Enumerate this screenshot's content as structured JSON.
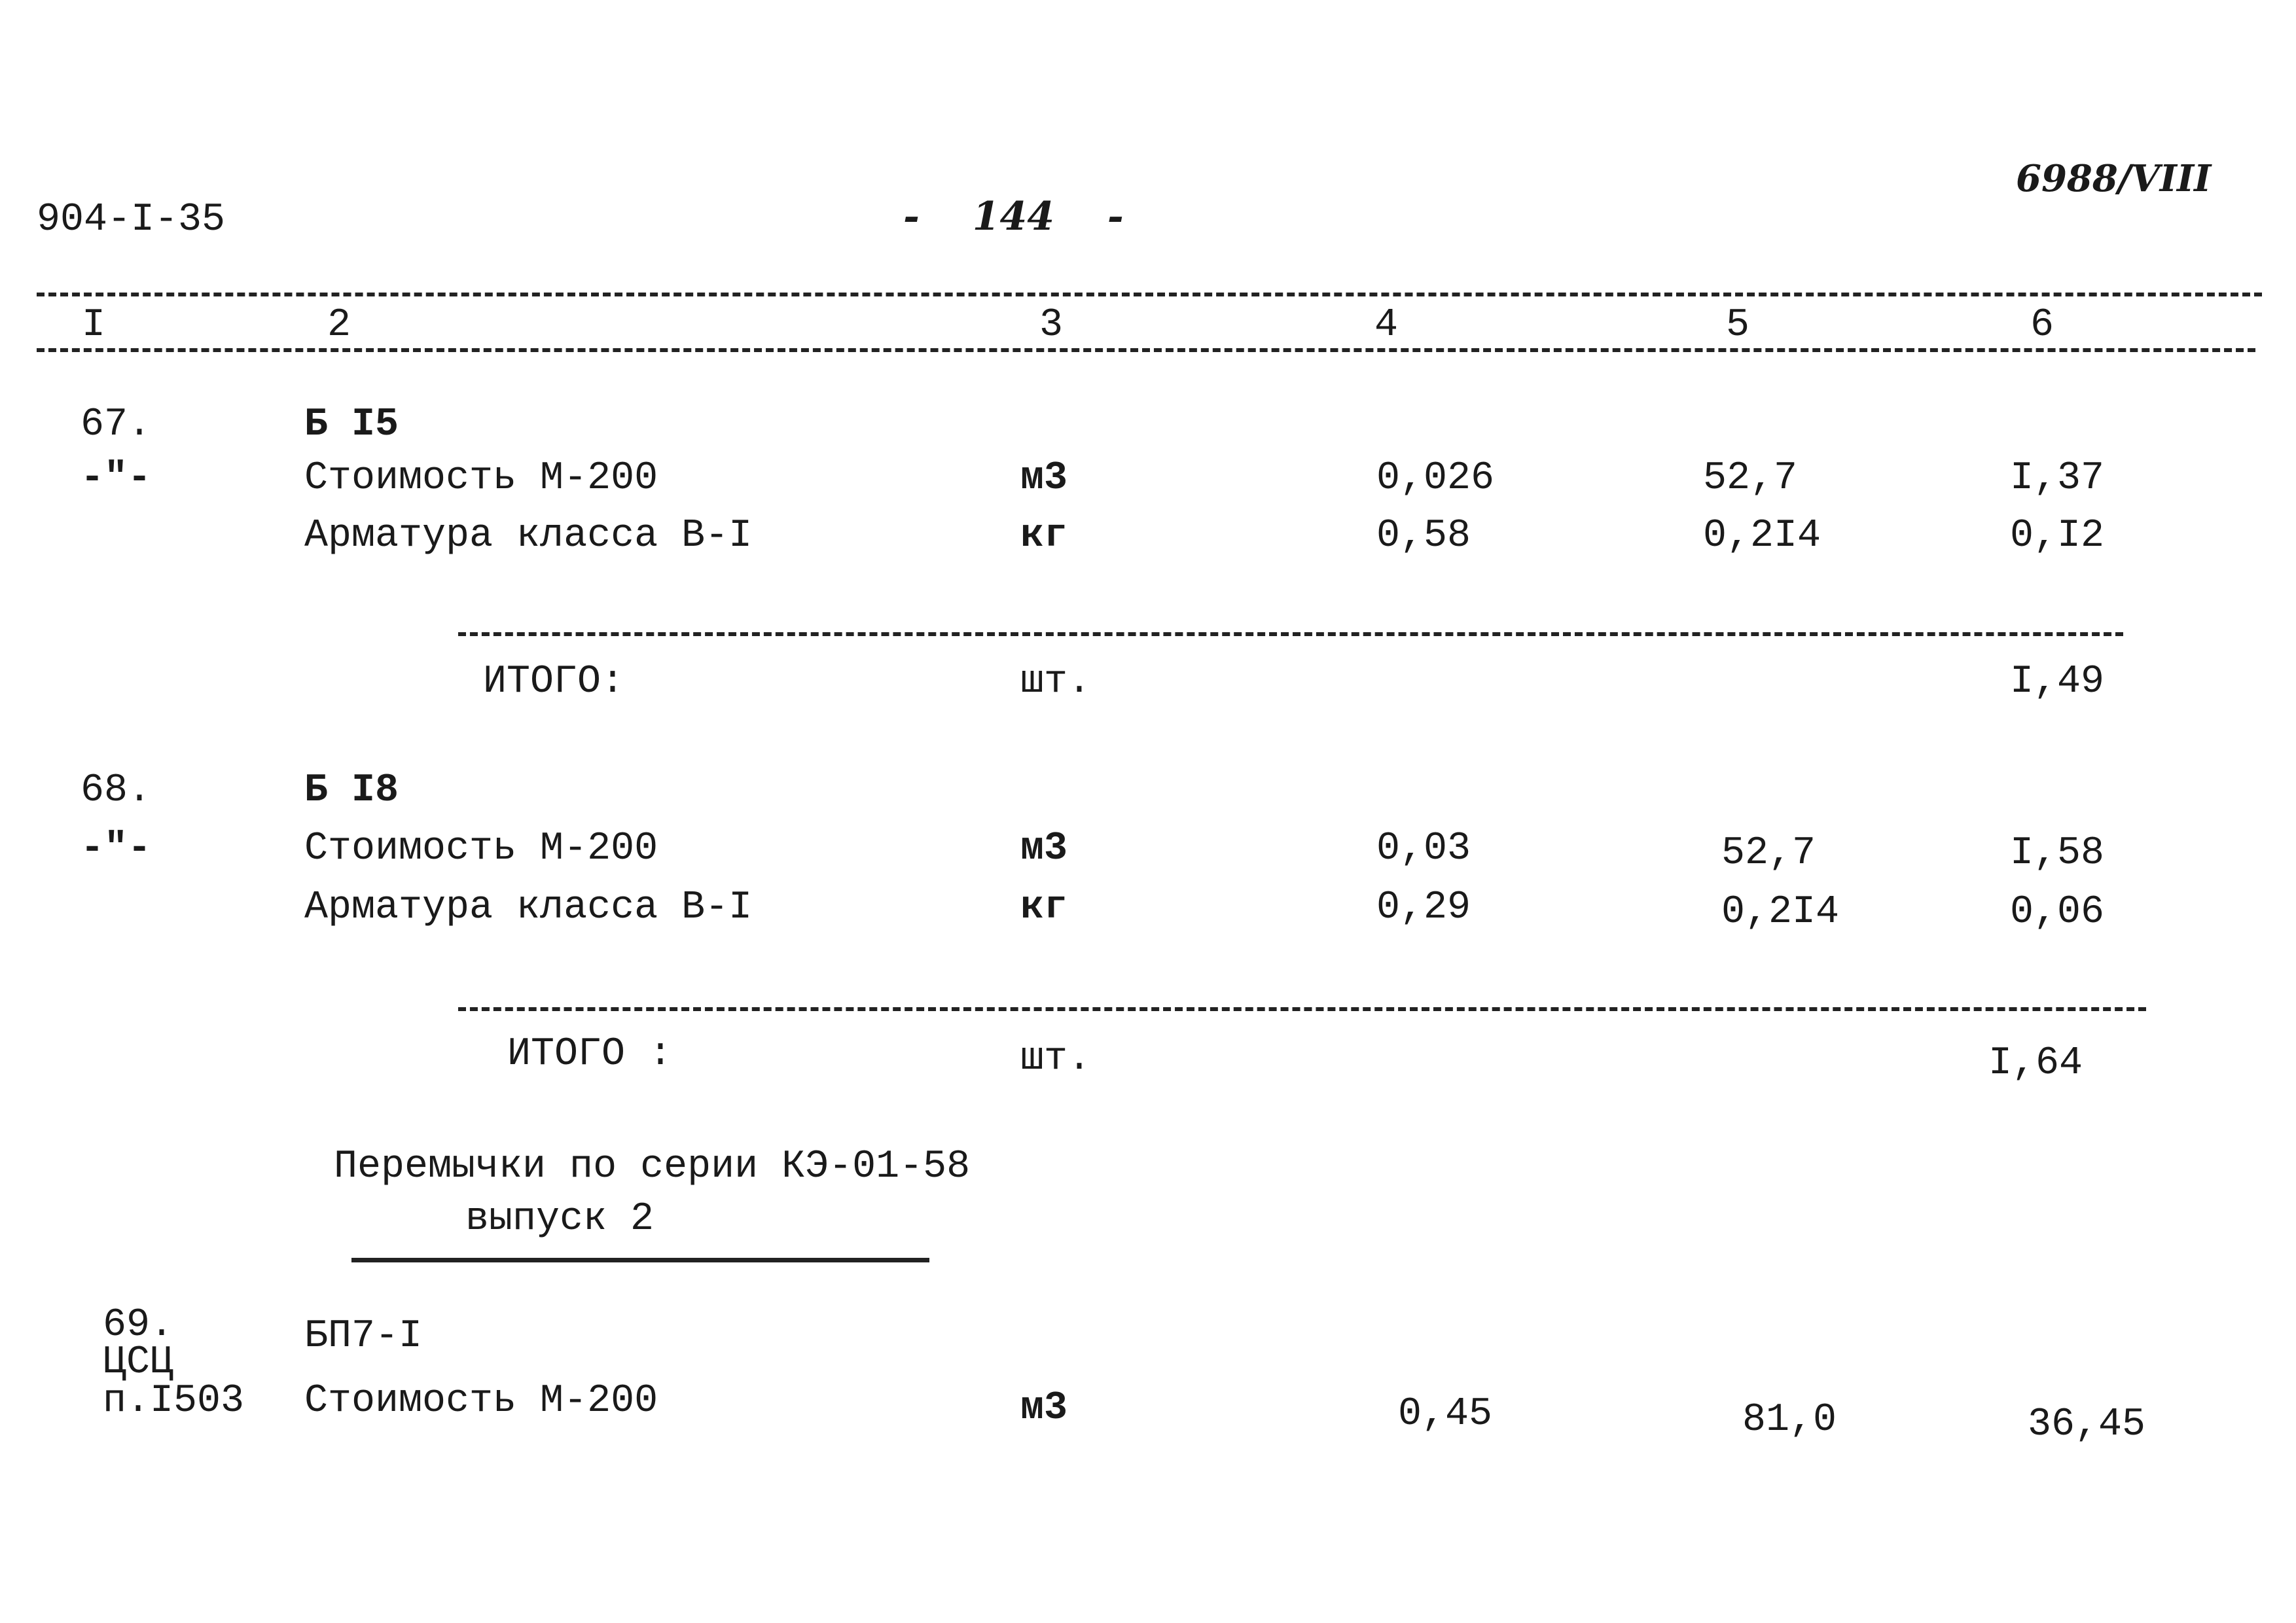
{
  "header": {
    "code": "904-I-35",
    "page": "- 144 -",
    "stamp": "6988/VIII"
  },
  "table": {
    "columns": [
      "I",
      "2",
      "3",
      "4",
      "5",
      "6"
    ],
    "groups": [
      {
        "number": "67.",
        "name": "Б I5",
        "rows": [
          {
            "ref": "-\"-",
            "name": "Стоимость М-200",
            "unit": "м3",
            "quantity": "0,026",
            "price": "52,7",
            "total": "I,37"
          },
          {
            "name": "Арматура класса В-I",
            "unit": "кг",
            "quantity": "0,58",
            "price": "0,2I4",
            "total": "0,I2"
          }
        ],
        "summary": {
          "label": "ИТОГО:",
          "unit": "шт.",
          "total": "I,49"
        }
      },
      {
        "number": "68.",
        "name": "Б I8",
        "rows": [
          {
            "ref": "-\"-",
            "name": "Стоимость М-200",
            "unit": "м3",
            "quantity": "0,03",
            "price": "52,7",
            "total": "I,58"
          },
          {
            "name": "Арматура класса В-I",
            "unit": "кг",
            "quantity": "0,29",
            "price": "0,2I4",
            "total": "0,06"
          }
        ],
        "summary": {
          "label": "ИТОГО :",
          "unit": "шт.",
          "total": "I,64"
        }
      }
    ],
    "section": {
      "title": "Перемычки по серии КЭ-01-58",
      "subtitle": "выпуск 2"
    },
    "last_group": {
      "number": "69.",
      "ref": [
        "ЦСЦ",
        "п.I503"
      ],
      "name": "БП7-I",
      "rows": [
        {
          "name": "Стоимость М-200",
          "unit": "м3",
          "quantity": "0,45",
          "price": "81,0",
          "total": "36,45"
        }
      ]
    }
  }
}
